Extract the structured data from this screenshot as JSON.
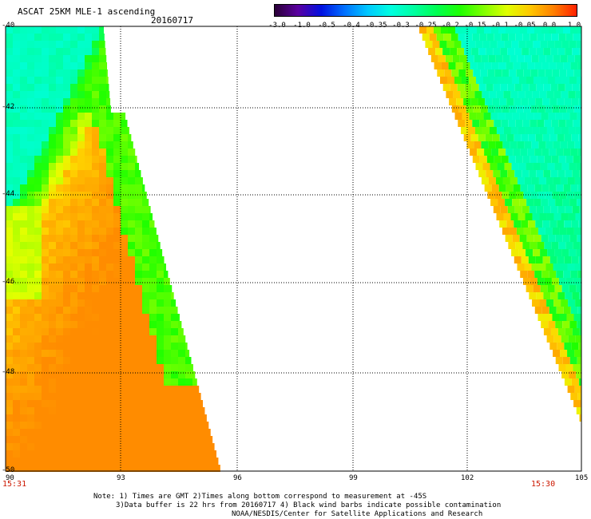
{
  "header": {
    "title": "ASCAT 25KM MLE-1 ascending",
    "date": "20160717"
  },
  "colorbar": {
    "labels": [
      "-3.0",
      "-1.0",
      "-0.5",
      "-0.4",
      "-0.35",
      "-0.3",
      "-0.25",
      "-0.2",
      "-0.15",
      "-0.1",
      "-0.05",
      "0.0",
      "1.0"
    ],
    "colors": [
      "#2a0036",
      "#5a00a0",
      "#0010e0",
      "#0070ff",
      "#00c8ff",
      "#00ffe0",
      "#00ffa0",
      "#00ff50",
      "#20ff00",
      "#80ff00",
      "#e0ff00",
      "#ffc800",
      "#ff8000",
      "#ff2000"
    ]
  },
  "axes": {
    "lat_labels": [
      "-40",
      "-42",
      "-44",
      "-46",
      "-48",
      "-50"
    ],
    "lon_labels": [
      "90",
      "93",
      "96",
      "99",
      "102",
      "105"
    ]
  },
  "swaths": {
    "left_time": "15:31",
    "right_time": "15:30"
  },
  "notes": {
    "line1": "Note: 1) Times are GMT 2)Times along bottom correspond to measurement at -45S",
    "line2": "3)Data buffer is 22 hrs from 20160717 4) Black wind barbs indicate possible contamination",
    "line3": "NOAA/NESDIS/Center for Satellite Applications and Research"
  }
}
